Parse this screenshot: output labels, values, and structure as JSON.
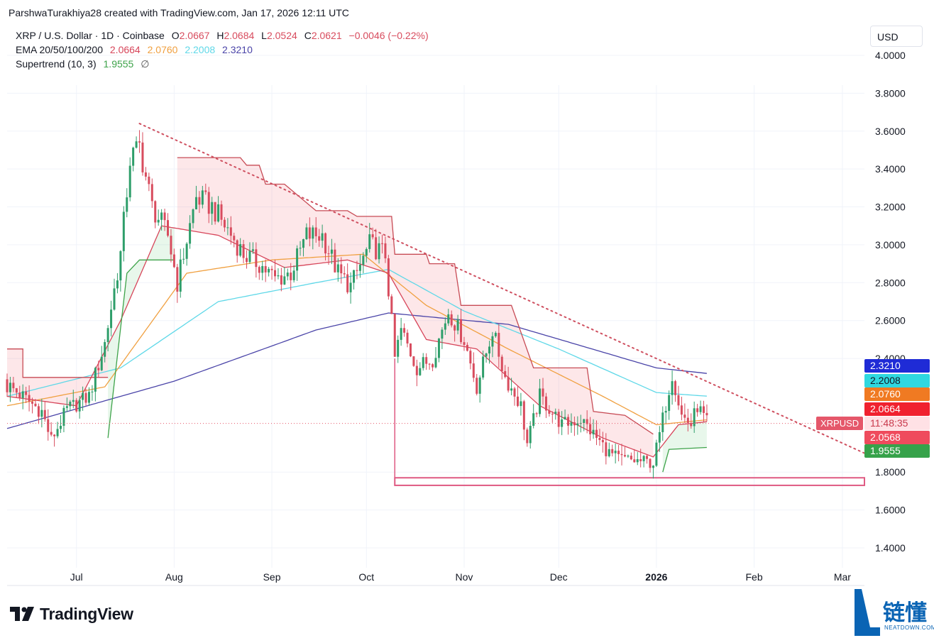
{
  "header": {
    "credit": "ParshwaTurakhiya28 created with TradingView.com, Jan 17, 2026 12:11 UTC"
  },
  "legend": {
    "symbol": "XRP / U.S. Dollar · 1D · Coinbase",
    "o_label": "O",
    "o_value": "2.0667",
    "h_label": "H",
    "h_value": "2.0684",
    "l_label": "L",
    "l_value": "2.0524",
    "c_label": "C",
    "c_value": "2.0621",
    "change": "−0.0046 (−0.22%)",
    "ema_label": "EMA 20/50/100/200",
    "ema20": "2.0664",
    "ema50": "2.0760",
    "ema100": "2.2008",
    "ema200": "2.3210",
    "supertrend_label": "Supertrend (10, 3)",
    "supertrend_value": "1.9555",
    "eye_icon": "∅"
  },
  "axis": {
    "currency": "USD"
  },
  "badges": {
    "ema200": "2.3210",
    "ema100": "2.2008",
    "ema50": "2.0760",
    "ema20": "2.0664",
    "symbol_tag": "XRPUSD",
    "countdown": "11:48:35",
    "price": "2.0568",
    "supertrend": "1.9555"
  },
  "footer": {
    "brand": "TradingView",
    "watermark_cn": "链懂",
    "watermark_en": "NEATDOWN.COM"
  },
  "colors": {
    "up": "#2e9e6a",
    "down": "#d84c5e",
    "ema20": "#d7455a",
    "ema50": "#f0a040",
    "ema100": "#5fd8e8",
    "ema200": "#4a44a8",
    "supertrend_up": "#3ea34a",
    "supertrend_down": "#c74b55",
    "trendline": "#cf5060",
    "support": "#df5a83"
  },
  "chart_data": {
    "type": "candlestick",
    "title": "XRP / U.S. Dollar · 1D · Coinbase",
    "ylim": [
      1.3,
      4.1
    ],
    "yticks": [
      "4.0000",
      "3.8000",
      "3.6000",
      "3.4000",
      "3.2000",
      "3.0000",
      "2.8000",
      "2.6000",
      "2.4000",
      "1.8000",
      "1.6000",
      "1.4000"
    ],
    "xticks": [
      "Jul",
      "Aug",
      "Sep",
      "Oct",
      "Nov",
      "Dec",
      "2026",
      "Feb",
      "Mar"
    ],
    "x_range": [
      "2025-06-09",
      "2026-03-08"
    ],
    "close_anchors": [
      [
        "2025-06-10",
        2.25
      ],
      [
        "2025-06-20",
        2.12
      ],
      [
        "2025-06-23",
        1.97
      ],
      [
        "2025-06-28",
        2.13
      ],
      [
        "2025-07-05",
        2.2
      ],
      [
        "2025-07-10",
        2.48
      ],
      [
        "2025-07-15",
        2.95
      ],
      [
        "2025-07-18",
        3.45
      ],
      [
        "2025-07-21",
        3.52
      ],
      [
        "2025-07-25",
        3.2
      ],
      [
        "2025-07-30",
        3.05
      ],
      [
        "2025-08-02",
        2.8
      ],
      [
        "2025-08-08",
        3.25
      ],
      [
        "2025-08-13",
        3.2
      ],
      [
        "2025-08-18",
        3.08
      ],
      [
        "2025-08-23",
        2.95
      ],
      [
        "2025-08-28",
        2.9
      ],
      [
        "2025-09-02",
        2.82
      ],
      [
        "2025-09-07",
        2.85
      ],
      [
        "2025-09-12",
        3.05
      ],
      [
        "2025-09-17",
        3.05
      ],
      [
        "2025-09-22",
        2.85
      ],
      [
        "2025-09-26",
        2.78
      ],
      [
        "2025-10-02",
        3.0
      ],
      [
        "2025-10-07",
        2.95
      ],
      [
        "2025-10-10",
        2.4
      ],
      [
        "2025-10-12",
        2.55
      ],
      [
        "2025-10-17",
        2.35
      ],
      [
        "2025-10-22",
        2.4
      ],
      [
        "2025-10-27",
        2.65
      ],
      [
        "2025-11-01",
        2.5
      ],
      [
        "2025-11-05",
        2.25
      ],
      [
        "2025-11-10",
        2.55
      ],
      [
        "2025-11-14",
        2.3
      ],
      [
        "2025-11-19",
        2.15
      ],
      [
        "2025-11-21",
        1.95
      ],
      [
        "2025-11-25",
        2.2
      ],
      [
        "2025-12-02",
        2.05
      ],
      [
        "2025-12-08",
        2.08
      ],
      [
        "2025-12-12",
        2.0
      ],
      [
        "2025-12-17",
        1.9
      ],
      [
        "2025-12-20",
        1.87
      ],
      [
        "2025-12-25",
        1.86
      ],
      [
        "2025-12-31",
        1.85
      ],
      [
        "2026-01-02",
        2.0
      ],
      [
        "2026-01-06",
        2.32
      ],
      [
        "2026-01-09",
        2.1
      ],
      [
        "2026-01-12",
        2.05
      ],
      [
        "2026-01-14",
        2.15
      ],
      [
        "2026-01-17",
        2.06
      ]
    ],
    "ema200_anchors": [
      [
        "2025-06-09",
        2.03
      ],
      [
        "2025-08-01",
        2.28
      ],
      [
        "2025-09-15",
        2.55
      ],
      [
        "2025-10-08",
        2.64
      ],
      [
        "2025-11-15",
        2.58
      ],
      [
        "2026-01-01",
        2.35
      ],
      [
        "2026-01-17",
        2.321
      ]
    ],
    "ema100_anchors": [
      [
        "2025-06-09",
        2.2
      ],
      [
        "2025-07-15",
        2.35
      ],
      [
        "2025-08-15",
        2.7
      ],
      [
        "2025-09-15",
        2.8
      ],
      [
        "2025-10-08",
        2.87
      ],
      [
        "2025-11-01",
        2.65
      ],
      [
        "2025-12-01",
        2.45
      ],
      [
        "2026-01-01",
        2.22
      ],
      [
        "2026-01-17",
        2.2008
      ]
    ],
    "ema50_anchors": [
      [
        "2025-06-09",
        2.15
      ],
      [
        "2025-07-10",
        2.25
      ],
      [
        "2025-08-05",
        2.85
      ],
      [
        "2025-09-01",
        2.92
      ],
      [
        "2025-09-30",
        2.95
      ],
      [
        "2025-10-20",
        2.68
      ],
      [
        "2025-11-15",
        2.45
      ],
      [
        "2025-12-15",
        2.2
      ],
      [
        "2026-01-01",
        2.05
      ],
      [
        "2026-01-17",
        2.076
      ]
    ],
    "ema20_anchors": [
      [
        "2025-06-09",
        2.2
      ],
      [
        "2025-07-01",
        2.15
      ],
      [
        "2025-07-15",
        2.6
      ],
      [
        "2025-07-28",
        3.1
      ],
      [
        "2025-08-15",
        3.05
      ],
      [
        "2025-09-05",
        2.88
      ],
      [
        "2025-09-25",
        2.92
      ],
      [
        "2025-10-08",
        2.85
      ],
      [
        "2025-10-20",
        2.5
      ],
      [
        "2025-11-05",
        2.45
      ],
      [
        "2025-11-25",
        2.15
      ],
      [
        "2025-12-15",
        1.98
      ],
      [
        "2025-12-31",
        1.88
      ],
      [
        "2026-01-08",
        2.05
      ],
      [
        "2026-01-17",
        2.066
      ]
    ],
    "supertrend_down": [
      [
        [
          "2025-06-09",
          2.45
        ],
        [
          "2025-06-14",
          2.45
        ],
        [
          "2025-06-14",
          2.3
        ],
        [
          "2025-07-11",
          2.3
        ]
      ],
      [
        [
          "2025-08-02",
          3.46
        ],
        [
          "2025-08-22",
          3.46
        ],
        [
          "2025-08-24",
          3.42
        ],
        [
          "2025-08-28",
          3.42
        ],
        [
          "2025-08-30",
          3.32
        ],
        [
          "2025-09-05",
          3.32
        ],
        [
          "2025-09-15",
          3.18
        ],
        [
          "2025-09-25",
          3.18
        ],
        [
          "2025-09-28",
          3.15
        ],
        [
          "2025-10-09",
          3.15
        ],
        [
          "2025-10-10",
          2.95
        ],
        [
          "2025-10-20",
          2.95
        ],
        [
          "2025-10-21",
          2.9
        ],
        [
          "2025-10-29",
          2.9
        ],
        [
          "2025-10-31",
          2.68
        ],
        [
          "2025-11-16",
          2.68
        ],
        [
          "2025-11-23",
          2.35
        ],
        [
          "2025-12-10",
          2.35
        ],
        [
          "2025-12-12",
          2.12
        ],
        [
          "2025-12-22",
          2.1
        ],
        [
          "2025-12-31",
          2.0
        ]
      ]
    ],
    "supertrend_up": [
      [
        [
          "2025-07-11",
          1.98
        ],
        [
          "2025-07-17",
          2.85
        ],
        [
          "2025-07-21",
          2.92
        ],
        [
          "2025-08-01",
          2.92
        ]
      ],
      [
        [
          "2026-01-03",
          1.8
        ],
        [
          "2026-01-05",
          1.92
        ],
        [
          "2026-01-17",
          1.93
        ]
      ]
    ],
    "trendline": [
      [
        "2025-07-21",
        3.64
      ],
      [
        "2026-03-08",
        1.9
      ]
    ],
    "support_zone": [
      [
        "2025-10-10",
        1.73
      ],
      [
        "2026-03-08",
        1.77
      ]
    ],
    "current_price": 2.0568
  }
}
